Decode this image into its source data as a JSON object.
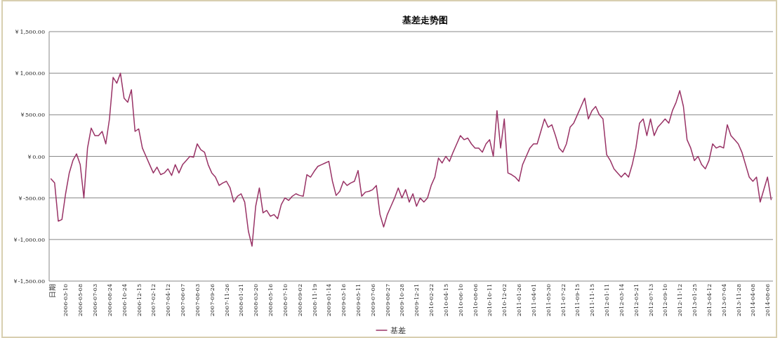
{
  "chart_data": {
    "type": "line",
    "title": "基差走势图",
    "categories": [
      "日期",
      null,
      null,
      null,
      "2006-03-10",
      null,
      null,
      null,
      "2006-05-08",
      null,
      null,
      null,
      "2006-07-03",
      null,
      null,
      null,
      "2006-08-24",
      null,
      null,
      null,
      "2006-10-24",
      null,
      null,
      null,
      "2006-12-15",
      null,
      null,
      null,
      "2007-02-12",
      null,
      null,
      null,
      "2007-04-12",
      null,
      null,
      null,
      "2007-06-07",
      null,
      null,
      null,
      "2007-08-03",
      null,
      null,
      null,
      "2007-09-26",
      null,
      null,
      null,
      "2007-11-26",
      null,
      null,
      null,
      "2008-01-21",
      null,
      null,
      null,
      "2008-03-20",
      null,
      null,
      null,
      "2008-05-16",
      null,
      null,
      null,
      "2008-07-10",
      null,
      null,
      null,
      "2008-09-02",
      null,
      null,
      null,
      "2008-11-19",
      null,
      null,
      null,
      "2009-01-14",
      null,
      null,
      null,
      "2009-03-16",
      null,
      null,
      null,
      "2009-05-11",
      null,
      null,
      null,
      "2009-07-06",
      null,
      null,
      null,
      "2009-08-27",
      null,
      null,
      null,
      "2009-10-28",
      null,
      null,
      null,
      "2009-12-21",
      null,
      null,
      null,
      "2010-02-22",
      null,
      null,
      null,
      "2010-04-15",
      null,
      null,
      null,
      "2010-06-10",
      null,
      null,
      null,
      "2010-08-06",
      null,
      null,
      null,
      "2010-10-11",
      null,
      null,
      null,
      "2010-12-02",
      null,
      null,
      null,
      "2011-01-26",
      null,
      null,
      null,
      "2011-04-01",
      null,
      null,
      null,
      "2011-05-30",
      null,
      null,
      null,
      "2011-07-22",
      null,
      null,
      null,
      "2011-09-15",
      null,
      null,
      null,
      "2011-11-15",
      null,
      null,
      null,
      "2012-01-11",
      null,
      null,
      null,
      "2012-03-14",
      null,
      null,
      null,
      "2012-05-21",
      null,
      null,
      null,
      "2012-07-13",
      null,
      null,
      null,
      "2012-09-10",
      null,
      null,
      null,
      "2012-11-12",
      null,
      null,
      null,
      "2013-01-25",
      null,
      null,
      null,
      "2013-04-12",
      null,
      null,
      null,
      "2013-07-04",
      null,
      null,
      null,
      "2013-11-28",
      null,
      null,
      null,
      "2014-04-08",
      null,
      null,
      null,
      "2014-08-06",
      null
    ],
    "series": [
      {
        "name": "基差",
        "color": "#993366",
        "values": [
          -270,
          -320,
          -780,
          -760,
          -450,
          -200,
          -50,
          30,
          -100,
          -500,
          100,
          340,
          250,
          250,
          300,
          150,
          450,
          950,
          880,
          1000,
          700,
          650,
          800,
          300,
          330,
          100,
          0,
          -100,
          -200,
          -130,
          -220,
          -200,
          -150,
          -230,
          -100,
          -200,
          -100,
          -50,
          0,
          -10,
          150,
          80,
          50,
          -100,
          -200,
          -250,
          -350,
          -320,
          -300,
          -380,
          -550,
          -480,
          -450,
          -550,
          -900,
          -1080,
          -600,
          -380,
          -680,
          -650,
          -720,
          -700,
          -750,
          -580,
          -500,
          -530,
          -480,
          -450,
          -470,
          -480,
          -220,
          -250,
          -180,
          -120,
          -100,
          -80,
          -60,
          -300,
          -470,
          -420,
          -300,
          -350,
          -320,
          -300,
          -170,
          -480,
          -430,
          -420,
          -400,
          -350,
          -700,
          -850,
          -700,
          -600,
          -500,
          -380,
          -500,
          -400,
          -550,
          -450,
          -600,
          -500,
          -550,
          -500,
          -350,
          -250,
          -20,
          -80,
          0,
          -60,
          50,
          150,
          250,
          200,
          220,
          150,
          100,
          100,
          50,
          150,
          200,
          0,
          550,
          100,
          450,
          -200,
          -220,
          -250,
          -300,
          -100,
          0,
          100,
          150,
          150,
          300,
          450,
          350,
          380,
          250,
          100,
          50,
          150,
          350,
          400,
          500,
          600,
          700,
          450,
          550,
          600,
          500,
          450,
          20,
          -50,
          -150,
          -200,
          -250,
          -200,
          -250,
          -100,
          100,
          400,
          450,
          250,
          450,
          250,
          350,
          400,
          450,
          400,
          550,
          650,
          790,
          600,
          200,
          100,
          -50,
          0,
          -100,
          -150,
          -50,
          150,
          100,
          120,
          100,
          380,
          250,
          200,
          150,
          50,
          -100,
          -250,
          -300,
          -250,
          -550,
          -400,
          -250,
          -520
        ]
      }
    ],
    "ylim": [
      -1500,
      1500
    ],
    "yticks": [
      {
        "value": -1500,
        "label": "￥-1,500.00"
      },
      {
        "value": -1000,
        "label": "￥-1,000.00"
      },
      {
        "value": -500,
        "label": "￥-500.00"
      },
      {
        "value": 0,
        "label": "￥0.00"
      },
      {
        "value": 500,
        "label": "￥500.00"
      },
      {
        "value": 1000,
        "label": "￥1,000.00"
      },
      {
        "value": 1500,
        "label": "￥1,500.00"
      }
    ],
    "grid": "y",
    "legend": "bottom"
  }
}
